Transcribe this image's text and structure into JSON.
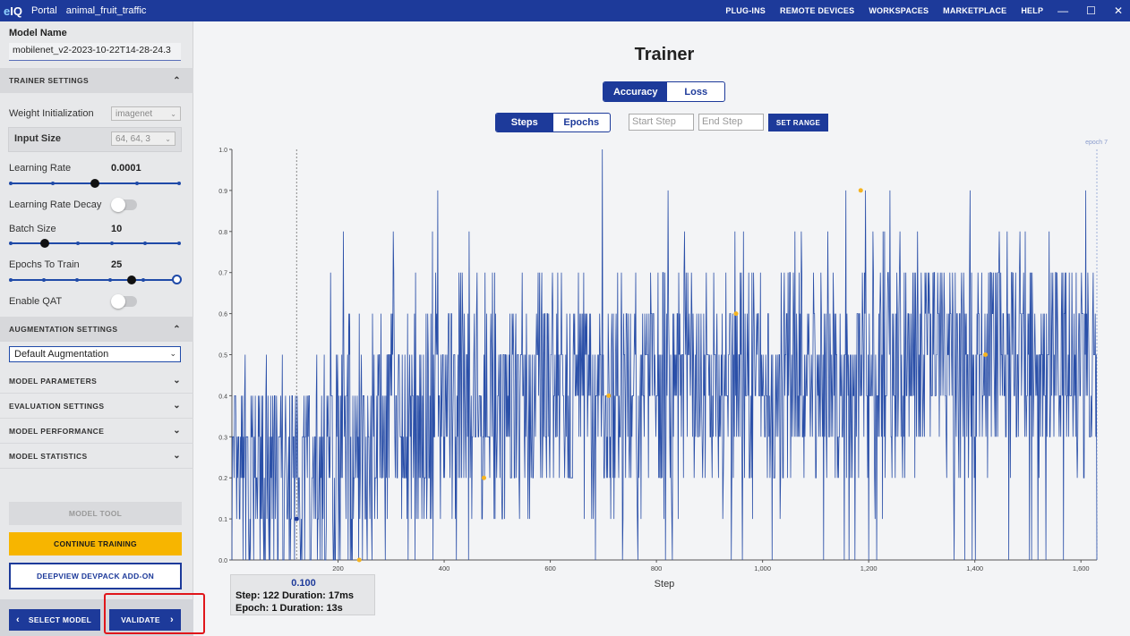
{
  "titlebar": {
    "logo_e": "e",
    "logo_iq": "IQ",
    "portal": "Portal",
    "project": "animal_fruit_traffic",
    "menu": [
      "PLUG-INS",
      "REMOTE DEVICES",
      "WORKSPACES",
      "MARKETPLACE",
      "HELP"
    ],
    "minimize": "—",
    "maximize": "☐",
    "close": "✕"
  },
  "sidebar": {
    "model_name_label": "Model Name",
    "model_name_value": "mobilenet_v2-2023-10-22T14-28-24.3",
    "trainer_settings": "TRAINER SETTINGS",
    "weight_init_label": "Weight Initialization",
    "weight_init_value": "imagenet",
    "input_size_label": "Input Size",
    "input_size_value": "64, 64, 3",
    "learning_rate_label": "Learning Rate",
    "learning_rate_value": "0.0001",
    "learning_rate_slider": 0.5,
    "learning_rate_decay_label": "Learning Rate Decay",
    "learning_rate_decay_on": false,
    "batch_size_label": "Batch Size",
    "batch_size_value": "10",
    "batch_size_slider": 0.2,
    "epochs_label": "Epochs To Train",
    "epochs_value": "25",
    "epochs_slider": 0.73,
    "enable_qat_label": "Enable QAT",
    "enable_qat_on": false,
    "augmentation_settings": "AUGMENTATION SETTINGS",
    "augmentation_value": "Default Augmentation",
    "model_parameters": "MODEL PARAMETERS",
    "evaluation_settings": "EVALUATION SETTINGS",
    "model_performance": "MODEL PERFORMANCE",
    "model_statistics": "MODEL STATISTICS",
    "model_tool": "MODEL TOOL",
    "continue_training": "CONTINUE TRAINING",
    "deepview": "DEEPVIEW DEVPACK ADD-ON",
    "select_model": "SELECT MODEL",
    "validate": "VALIDATE"
  },
  "main": {
    "title": "Trainer",
    "metric_tabs": [
      "Accuracy",
      "Loss"
    ],
    "active_metric": "Accuracy",
    "axis_tabs": [
      "Steps",
      "Epochs"
    ],
    "active_axis": "Steps",
    "start_step_placeholder": "Start Step",
    "end_step_placeholder": "End Step",
    "set_range": "SET RANGE"
  },
  "chart_data": {
    "type": "line",
    "xlabel": "Step",
    "ylabel": "",
    "xlim": [
      0,
      1630
    ],
    "ylim": [
      0,
      1.0
    ],
    "xticks": [
      200,
      400,
      600,
      800,
      1000,
      1200,
      1400,
      1600
    ],
    "xtick_labels": [
      "200",
      "400",
      "600",
      "800",
      "1,000",
      "1,200",
      "1,400",
      "1,600"
    ],
    "yticks": [
      0,
      0.1,
      0.2,
      0.3,
      0.4,
      0.5,
      0.6,
      0.7,
      0.8,
      0.9,
      1.0
    ],
    "ytick_labels": [
      "0.0",
      "0.1",
      "0.2",
      "0.3",
      "0.4",
      "0.5",
      "0.6",
      "0.7",
      "0.8",
      "0.9",
      "1.0"
    ],
    "series_color": "#2a4fa8",
    "point_color": "#f5b320",
    "epoch_marker_label": "epoch 7",
    "epoch_marker_x": 1630,
    "cursor_x": 122,
    "cursor_y": 0.1,
    "step_accuracy_trend": [
      {
        "x": 0,
        "y": 0.15
      },
      {
        "x": 100,
        "y": 0.18
      },
      {
        "x": 200,
        "y": 0.28
      },
      {
        "x": 300,
        "y": 0.33
      },
      {
        "x": 400,
        "y": 0.36
      },
      {
        "x": 500,
        "y": 0.38
      },
      {
        "x": 600,
        "y": 0.4
      },
      {
        "x": 800,
        "y": 0.42
      },
      {
        "x": 1000,
        "y": 0.44
      },
      {
        "x": 1200,
        "y": 0.46
      },
      {
        "x": 1400,
        "y": 0.48
      },
      {
        "x": 1630,
        "y": 0.49
      }
    ],
    "epoch_points": [
      {
        "x": 240,
        "y": 0.0
      },
      {
        "x": 475,
        "y": 0.2
      },
      {
        "x": 710,
        "y": 0.4
      },
      {
        "x": 950,
        "y": 0.6
      },
      {
        "x": 1185,
        "y": 0.9
      },
      {
        "x": 1420,
        "y": 0.5
      }
    ]
  },
  "tooltip": {
    "value": "0.100",
    "row1": "Step: 122  Duration: 17ms",
    "row2": "Epoch: 1   Duration: 13s"
  }
}
